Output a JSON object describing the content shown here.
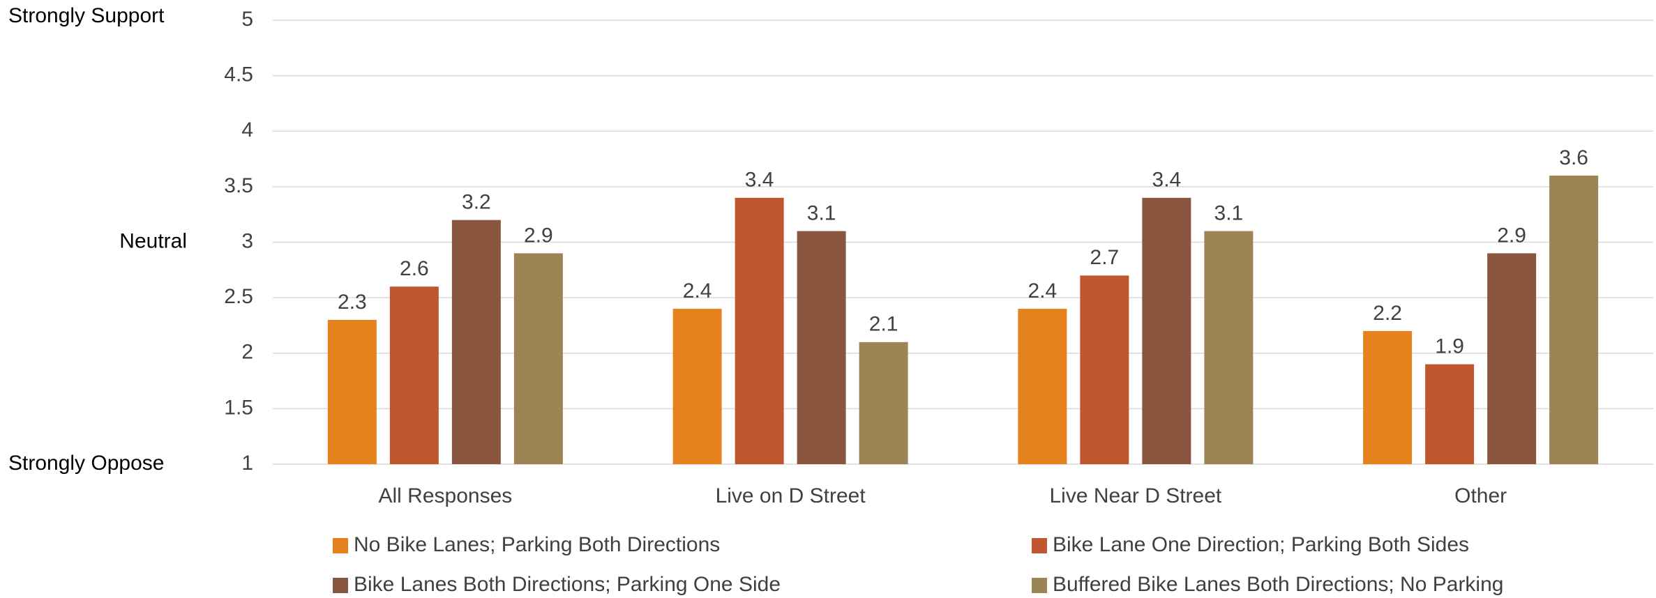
{
  "chart_data": {
    "type": "bar",
    "categories": [
      "All Responses",
      "Live on D Street",
      "Live Near D Street",
      "Other"
    ],
    "series": [
      {
        "name": "No Bike Lanes; Parking Both Directions",
        "color": "#e6821e",
        "values": [
          2.3,
          2.4,
          2.4,
          2.2
        ]
      },
      {
        "name": "Bike Lane One Direction; Parking Both Sides",
        "color": "#c0572e",
        "values": [
          2.6,
          3.4,
          2.7,
          1.9
        ]
      },
      {
        "name": "Bike Lanes Both Directions; Parking One Side",
        "color": "#8b5640",
        "values": [
          3.2,
          3.1,
          3.4,
          2.9
        ]
      },
      {
        "name": "Buffered Bike Lanes Both Directions; No Parking",
        "color": "#9c8455",
        "values": [
          2.9,
          2.1,
          3.1,
          3.6
        ]
      }
    ],
    "ylim": [
      1,
      5
    ],
    "yticks": [
      1,
      1.5,
      2,
      2.5,
      3,
      3.5,
      4,
      4.5,
      5
    ],
    "y_annotations": [
      {
        "value": 5,
        "label": "Strongly Support"
      },
      {
        "value": 3,
        "label": "Neutral"
      },
      {
        "value": 1,
        "label": "Strongly Oppose"
      }
    ],
    "grid": true,
    "legend": "bottom"
  }
}
